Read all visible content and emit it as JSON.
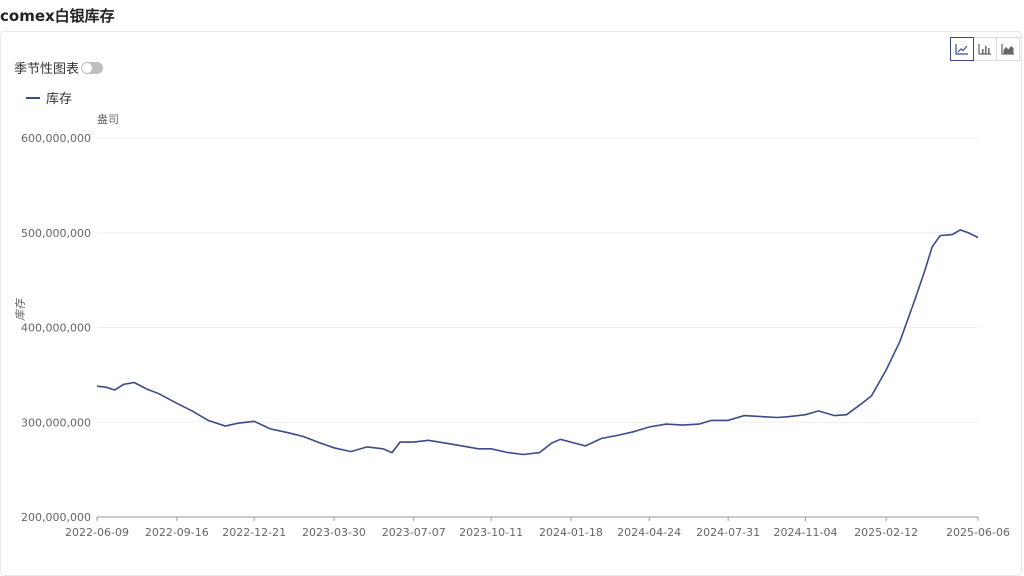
{
  "page": {
    "title": "comex白银库存"
  },
  "controls": {
    "seasonal_label": "季节性图表",
    "seasonal_on": false,
    "chart_types": [
      {
        "icon": "line-chart-icon",
        "active": true
      },
      {
        "icon": "bar-chart-icon",
        "active": false
      },
      {
        "icon": "area-chart-icon",
        "active": false
      }
    ]
  },
  "colors": {
    "line": "#3d4a8a",
    "grid": "#eeeeee",
    "axis": "#999999"
  },
  "chart_data": {
    "type": "line",
    "title": "",
    "unit": "盎司",
    "ylabel": "库存",
    "ylim": [
      200000000,
      600000000
    ],
    "yticks": [
      200000000,
      300000000,
      400000000,
      500000000,
      600000000
    ],
    "ytick_labels": [
      "200,000,000",
      "300,000,000",
      "400,000,000",
      "500,000,000",
      "600,000,000"
    ],
    "xtick_labels": [
      "2022-06-09",
      "2022-09-16",
      "2022-12-21",
      "2023-03-30",
      "2023-07-07",
      "2023-10-11",
      "2024-01-18",
      "2024-04-24",
      "2024-07-31",
      "2024-11-04",
      "2025-02-12",
      "2025-06-06"
    ],
    "legend": [
      "库存"
    ],
    "series": [
      {
        "name": "库存",
        "x": [
          "2022-06-09",
          "2022-06-20",
          "2022-07-01",
          "2022-07-12",
          "2022-07-25",
          "2022-08-10",
          "2022-08-25",
          "2022-09-16",
          "2022-10-05",
          "2022-10-25",
          "2022-11-15",
          "2022-12-01",
          "2022-12-21",
          "2023-01-10",
          "2023-02-01",
          "2023-02-20",
          "2023-03-10",
          "2023-03-30",
          "2023-04-20",
          "2023-05-10",
          "2023-05-30",
          "2023-06-10",
          "2023-06-20",
          "2023-07-07",
          "2023-07-25",
          "2023-08-15",
          "2023-09-05",
          "2023-09-25",
          "2023-10-11",
          "2023-11-01",
          "2023-11-20",
          "2023-12-10",
          "2023-12-25",
          "2024-01-05",
          "2024-01-18",
          "2024-02-05",
          "2024-02-25",
          "2024-03-15",
          "2024-04-05",
          "2024-04-24",
          "2024-05-15",
          "2024-06-05",
          "2024-06-25",
          "2024-07-10",
          "2024-07-31",
          "2024-08-20",
          "2024-09-10",
          "2024-09-30",
          "2024-10-15",
          "2024-11-04",
          "2024-11-20",
          "2024-12-10",
          "2024-12-25",
          "2025-01-10",
          "2025-01-25",
          "2025-02-12",
          "2025-03-01",
          "2025-03-20",
          "2025-04-01",
          "2025-04-10",
          "2025-04-20",
          "2025-05-05",
          "2025-05-15",
          "2025-05-25",
          "2025-06-06"
        ],
        "values": [
          338000000,
          337000000,
          334000000,
          340000000,
          342000000,
          335000000,
          330000000,
          320000000,
          312000000,
          302000000,
          296000000,
          299000000,
          301000000,
          293000000,
          289000000,
          285000000,
          279000000,
          273000000,
          269000000,
          274000000,
          272000000,
          268000000,
          279000000,
          279000000,
          281000000,
          278000000,
          275000000,
          272000000,
          272000000,
          268000000,
          266000000,
          268000000,
          278000000,
          282000000,
          279000000,
          275000000,
          283000000,
          286000000,
          290000000,
          295000000,
          298000000,
          297000000,
          298000000,
          302000000,
          302000000,
          307000000,
          306000000,
          305000000,
          306000000,
          308000000,
          312000000,
          307000000,
          308000000,
          318000000,
          328000000,
          355000000,
          385000000,
          430000000,
          460000000,
          485000000,
          497000000,
          498000000,
          503000000,
          500000000,
          495000000
        ]
      }
    ]
  }
}
